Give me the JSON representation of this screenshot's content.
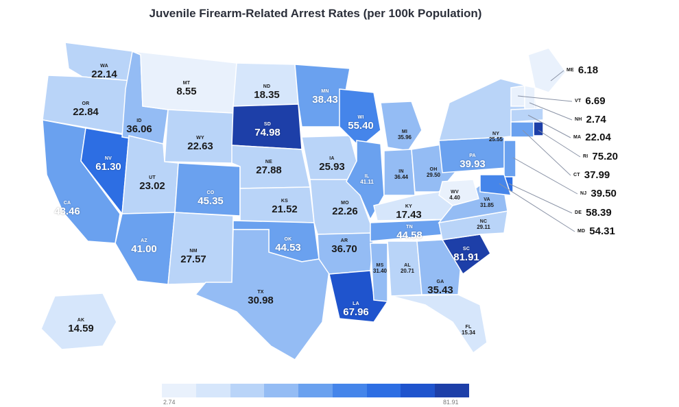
{
  "title": "Juvenile Firearm-Related Arrest Rates (per 100k Population)",
  "colors": {
    "scale": [
      "#e9f1fc",
      "#d6e6fb",
      "#b9d4f8",
      "#94bcf4",
      "#6aa1ef",
      "#4585ea",
      "#2d6ee3",
      "#1f54cd",
      "#1d3fa8"
    ],
    "border": "#ffffff"
  },
  "legend": {
    "min": "2.74",
    "max": "81.91"
  },
  "states": [
    {
      "abbr": "WA",
      "value": "22.14"
    },
    {
      "abbr": "OR",
      "value": "22.84"
    },
    {
      "abbr": "CA",
      "value": "43.46"
    },
    {
      "abbr": "NV",
      "value": "61.30"
    },
    {
      "abbr": "ID",
      "value": "36.06"
    },
    {
      "abbr": "MT",
      "value": "8.55"
    },
    {
      "abbr": "WY",
      "value": "22.63"
    },
    {
      "abbr": "UT",
      "value": "23.02"
    },
    {
      "abbr": "AZ",
      "value": "41.00"
    },
    {
      "abbr": "CO",
      "value": "45.35"
    },
    {
      "abbr": "NM",
      "value": "27.57"
    },
    {
      "abbr": "ND",
      "value": "18.35"
    },
    {
      "abbr": "SD",
      "value": "74.98"
    },
    {
      "abbr": "NE",
      "value": "27.88"
    },
    {
      "abbr": "KS",
      "value": "21.52"
    },
    {
      "abbr": "OK",
      "value": "44.53"
    },
    {
      "abbr": "TX",
      "value": "30.98"
    },
    {
      "abbr": "MN",
      "value": "38.43"
    },
    {
      "abbr": "IA",
      "value": "25.93"
    },
    {
      "abbr": "MO",
      "value": "22.26"
    },
    {
      "abbr": "AR",
      "value": "36.70"
    },
    {
      "abbr": "LA",
      "value": "67.96"
    },
    {
      "abbr": "WI",
      "value": "55.40"
    },
    {
      "abbr": "IL",
      "value": "41.11"
    },
    {
      "abbr": "MI",
      "value": "35.96"
    },
    {
      "abbr": "IN",
      "value": "36.44"
    },
    {
      "abbr": "OH",
      "value": "29.50"
    },
    {
      "abbr": "KY",
      "value": "17.43"
    },
    {
      "abbr": "TN",
      "value": "44.58"
    },
    {
      "abbr": "MS",
      "value": "31.40"
    },
    {
      "abbr": "AL",
      "value": "20.71"
    },
    {
      "abbr": "GA",
      "value": "35.43"
    },
    {
      "abbr": "FL",
      "value": "15.34"
    },
    {
      "abbr": "SC",
      "value": "81.91"
    },
    {
      "abbr": "NC",
      "value": "29.11"
    },
    {
      "abbr": "VA",
      "value": "31.85"
    },
    {
      "abbr": "WV",
      "value": "4.40"
    },
    {
      "abbr": "PA",
      "value": "39.93"
    },
    {
      "abbr": "NY",
      "value": "25.55"
    },
    {
      "abbr": "AK",
      "value": "14.59"
    }
  ],
  "callouts": [
    {
      "abbr": "ME",
      "value": "6.18"
    },
    {
      "abbr": "VT",
      "value": "6.69"
    },
    {
      "abbr": "NH",
      "value": "2.74"
    },
    {
      "abbr": "MA",
      "value": "22.04"
    },
    {
      "abbr": "RI",
      "value": "75.20"
    },
    {
      "abbr": "CT",
      "value": "37.99"
    },
    {
      "abbr": "NJ",
      "value": "39.50"
    },
    {
      "abbr": "DE",
      "value": "58.39"
    },
    {
      "abbr": "MD",
      "value": "54.31"
    }
  ]
}
